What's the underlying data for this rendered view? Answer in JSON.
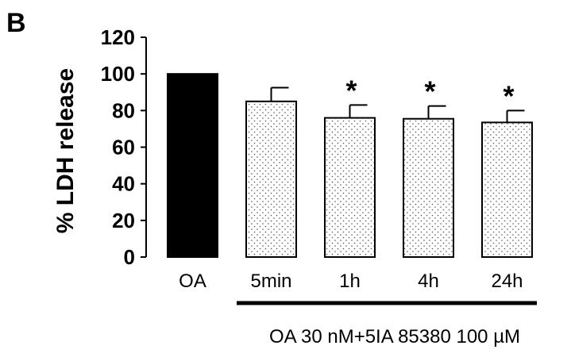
{
  "chart_data": {
    "type": "bar",
    "panel_label": "B",
    "ylabel": "% LDH release",
    "ylim": [
      0,
      120
    ],
    "yticks": [
      0,
      20,
      40,
      60,
      80,
      100,
      120
    ],
    "grid": false,
    "categories": [
      "OA",
      "5min",
      "1h",
      "4h",
      "24h"
    ],
    "values": [
      100,
      85,
      76,
      75.5,
      73.5
    ],
    "errors": [
      0,
      7.5,
      7,
      7,
      6.5
    ],
    "significant": [
      "",
      "",
      "*",
      "*",
      "*"
    ],
    "bar_fills": [
      "solid-black",
      "dotted",
      "dotted",
      "dotted",
      "dotted"
    ],
    "group_bracket": {
      "label": "OA 30 nM+5IA 85380 100 µM",
      "from_category": 1,
      "to_category": 4
    }
  }
}
